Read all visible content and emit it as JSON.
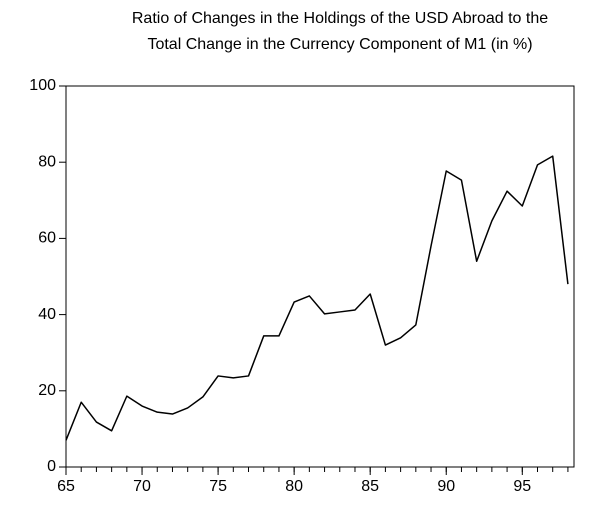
{
  "chart_data": {
    "type": "line",
    "title": [
      "Ratio of Changes in the Holdings of the USD Abroad to the",
      "Total Change in the Currency Component of M1 (in %)"
    ],
    "x": [
      65,
      66,
      67,
      68,
      69,
      70,
      71,
      72,
      73,
      74,
      75,
      76,
      77,
      78,
      79,
      80,
      81,
      82,
      83,
      84,
      85,
      86,
      87,
      88,
      89,
      90,
      91,
      92,
      93,
      94,
      95,
      96,
      97,
      98
    ],
    "series": [
      {
        "color": "#000000",
        "values": [
          7,
          17,
          11.8,
          9.5,
          18.6,
          16,
          14.4,
          13.9,
          15.5,
          18.4,
          23.9,
          23.4,
          23.9,
          34.4,
          34.4,
          43.3,
          44.9,
          40.2,
          40.7,
          41.2,
          45.4,
          32,
          33.9,
          37.3,
          58,
          77.7,
          75.3,
          54,
          64.6,
          72.4,
          68.5,
          79.3,
          81.6,
          48
        ]
      }
    ],
    "xlim": [
      65,
      98.4
    ],
    "xticks": [
      65,
      70,
      75,
      80,
      85,
      90,
      95
    ],
    "ylim": [
      0,
      100
    ],
    "yticks": [
      0,
      20,
      40,
      60,
      80,
      100
    ]
  }
}
